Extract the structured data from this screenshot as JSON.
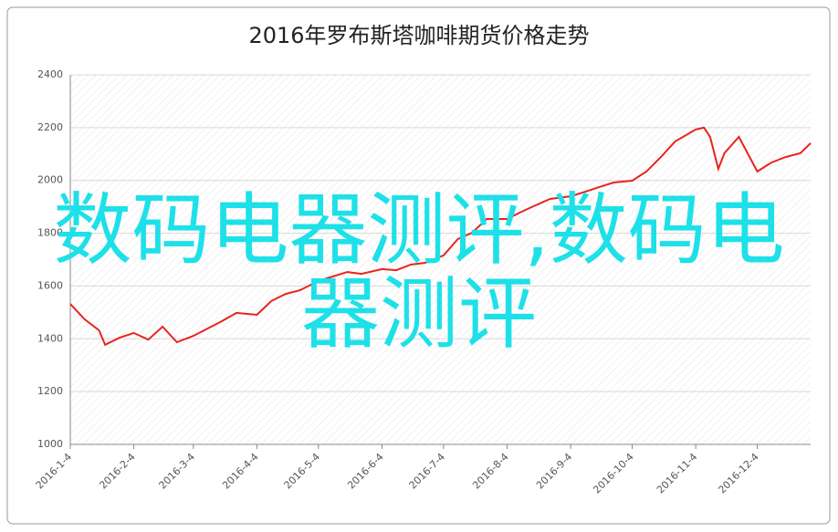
{
  "chart_data": {
    "type": "line",
    "title": "2016年罗布斯塔咖啡期货价格走势",
    "x": [
      "2016-1-4",
      "2016-1-11",
      "2016-1-18",
      "2016-1-21",
      "2016-1-28",
      "2016-2-4",
      "2016-2-11",
      "2016-2-18",
      "2016-2-25",
      "2016-3-4",
      "2016-3-11",
      "2016-3-18",
      "2016-3-25",
      "2016-4-4",
      "2016-4-11",
      "2016-4-18",
      "2016-4-25",
      "2016-5-4",
      "2016-5-11",
      "2016-5-18",
      "2016-5-25",
      "2016-6-4",
      "2016-6-11",
      "2016-6-18",
      "2016-6-25",
      "2016-7-4",
      "2016-7-11",
      "2016-7-18",
      "2016-7-25",
      "2016-8-4",
      "2016-8-11",
      "2016-8-18",
      "2016-8-25",
      "2016-9-4",
      "2016-9-11",
      "2016-9-18",
      "2016-9-25",
      "2016-10-4",
      "2016-10-11",
      "2016-10-18",
      "2016-10-25",
      "2016-11-4",
      "2016-11-8",
      "2016-11-11",
      "2016-11-15",
      "2016-11-18",
      "2016-11-25",
      "2016-12-4",
      "2016-12-11",
      "2016-12-18",
      "2016-12-25",
      "2016-12-30"
    ],
    "series": [
      {
        "color": "#e8231e",
        "values": [
          1532,
          1474,
          1432,
          1377,
          1404,
          1422,
          1397,
          1446,
          1387,
          1411,
          1439,
          1467,
          1498,
          1491,
          1543,
          1570,
          1584,
          1619,
          1636,
          1653,
          1646,
          1664,
          1660,
          1681,
          1688,
          1716,
          1778,
          1802,
          1854,
          1854,
          1881,
          1906,
          1930,
          1940,
          1957,
          1975,
          1992,
          1999,
          2034,
          2089,
          2148,
          2193,
          2200,
          2165,
          2044,
          2103,
          2165,
          2034,
          2068,
          2089,
          2103,
          2141
        ]
      }
    ],
    "xlim": [
      "2016-1-4",
      "2016-12-30"
    ],
    "xticks": [
      "2016-1-4",
      "2016-2-4",
      "2016-3-4",
      "2016-4-4",
      "2016-5-4",
      "2016-6-4",
      "2016-7-4",
      "2016-8-4",
      "2016-9-4",
      "2016-10-4",
      "2016-11-4",
      "2016-12-4"
    ],
    "ylim": [
      1000,
      2400
    ],
    "yticks": [
      1000,
      1200,
      1400,
      1600,
      1800,
      2000,
      2200,
      2400
    ],
    "grid": true,
    "annotations": [
      "数码电器测评,数码电",
      "器测评"
    ],
    "annotation_color": "#1ee0e8"
  }
}
